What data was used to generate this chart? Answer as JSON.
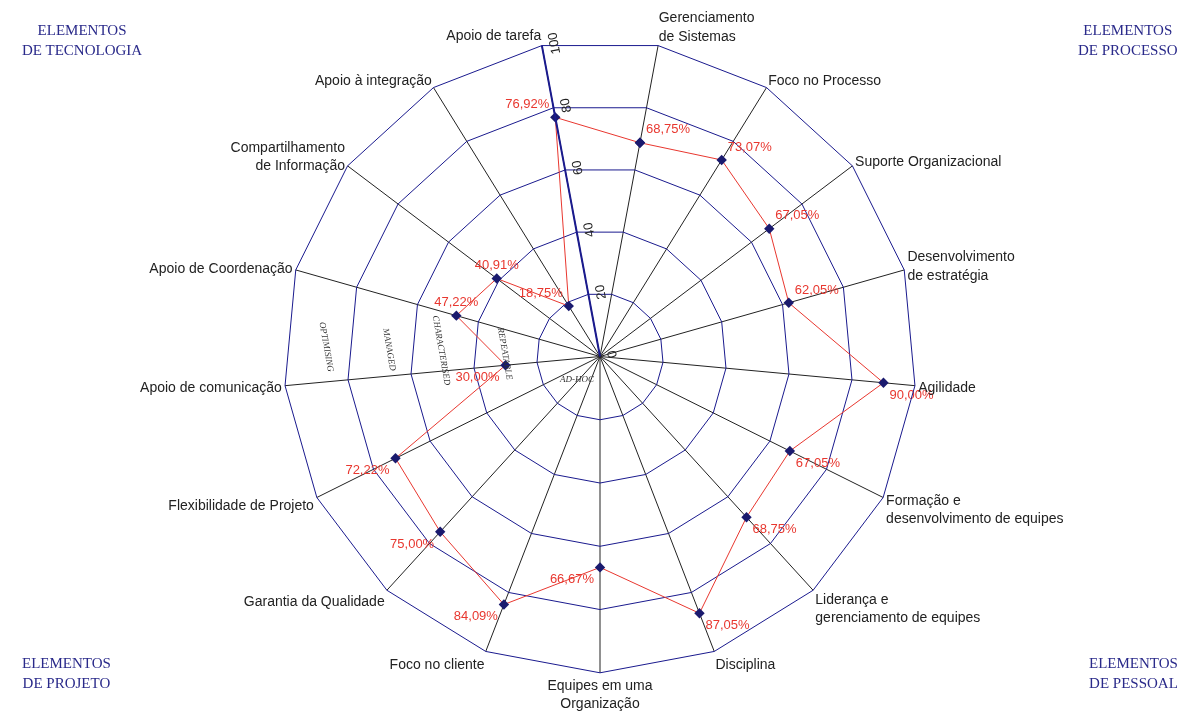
{
  "chart_data": {
    "type": "radar",
    "categories": [
      "Gerenciamento de Sistemas",
      "Foco no Processo",
      "Suporte Organizacional",
      "Desenvolvimento de estratégia",
      "Agilidade",
      "Formação e desenvolvimento de equipes",
      "Liderança e gerenciamento de equipes",
      "Disciplina",
      "Equipes em uma Organização",
      "Foco no cliente",
      "Garantia da Qualidade",
      "Flexibilidade de Projeto",
      "Apoio de comunicação",
      "Apoio de Coordenação",
      "Compartilhamento de Informação",
      "Apoio à integração",
      "Apoio de tarefa"
    ],
    "series": [
      {
        "color": "#e8372f",
        "values": [
          68.75,
          73.07,
          67.05,
          62.05,
          90.0,
          67.05,
          68.75,
          87.05,
          66.67,
          84.09,
          75.0,
          72.22,
          30.0,
          47.22,
          40.91,
          18.75,
          76.92
        ],
        "value_labels": [
          "68,75%",
          "73,07%",
          "67,05%",
          "62,05%",
          "90,00%",
          "67,05%",
          "68,75%",
          "87,05%",
          "66,67%",
          "84,09%",
          "75,00%",
          "72,22%",
          "30,00%",
          "47,22%",
          "40,91%",
          "18,75%",
          "76,92%"
        ]
      }
    ],
    "ylim": [
      0,
      100
    ],
    "yticks": [
      0,
      20,
      40,
      60,
      80,
      100
    ],
    "marker": "diamond",
    "grid": true,
    "annotations": [
      "ELEMENTOS\nDE TECNOLOGIA",
      "ELEMENTOS\nDE PROCESSO",
      "ELEMENTOS\nDE PROJETO",
      "ELEMENTOS\nDE PESSOAL",
      "AD-HOC",
      "REPEATABLE",
      "CHARACTERISED",
      "MANAGED",
      "OPTIMISING"
    ]
  }
}
